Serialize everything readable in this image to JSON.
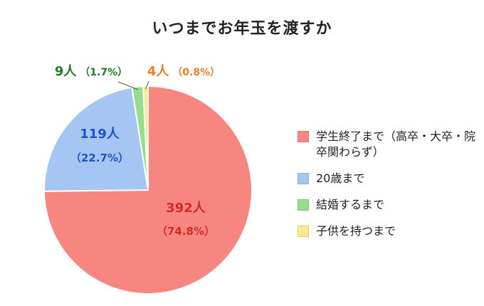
{
  "chart_data": {
    "type": "pie",
    "title": "いつまでお年玉を渡すか",
    "slices": [
      {
        "name": "学生終了まで（高卒・大卒・院卒関わらず）",
        "value": 392,
        "percent": 74.8,
        "count_label": "392人",
        "percent_label": "（74.8%）",
        "color": "#F88680"
      },
      {
        "name": "20歳まで",
        "value": 119,
        "percent": 22.7,
        "count_label": "119人",
        "percent_label": "（22.7%）",
        "color": "#A5C5F2"
      },
      {
        "name": "結婚するまで",
        "value": 9,
        "percent": 1.7,
        "count_label": "9人",
        "percent_label": "（1.7%）",
        "color": "#97DD8C"
      },
      {
        "name": "子供を持つまで",
        "value": 4,
        "percent": 0.8,
        "count_label": "4人",
        "percent_label": "（0.8%）",
        "color": "#FCE98A"
      }
    ],
    "label_colors": [
      "#D42A2A",
      "#1F55C2",
      "#247A22",
      "#EF7D24"
    ],
    "legend_position": "right"
  }
}
